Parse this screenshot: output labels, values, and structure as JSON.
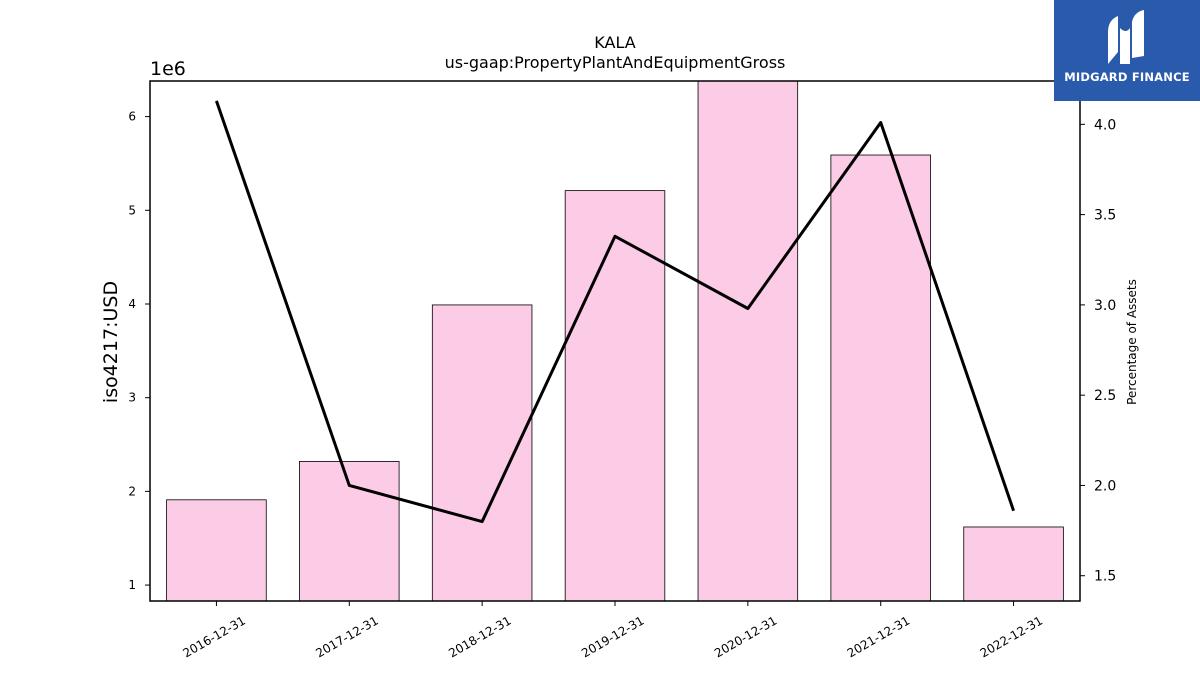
{
  "chart_data": {
    "type": "bar",
    "title": "KALA",
    "subtitle": "us-gaap:PropertyPlantAndEquipmentGross",
    "ylabel": "iso4217:USD",
    "y2label": "Percentage of Assets",
    "y_offset_text": "1e6",
    "categories": [
      "2016-12-31",
      "2017-12-31",
      "2018-12-31",
      "2019-12-31",
      "2020-12-31",
      "2021-12-31",
      "2022-12-31"
    ],
    "series": [
      {
        "type": "bar",
        "axis": "left",
        "values": [
          1910000,
          2320000,
          3990000,
          5210000,
          6400000,
          5590000,
          1620000
        ]
      },
      {
        "type": "line",
        "axis": "right",
        "values": [
          4.13,
          2.0,
          1.8,
          3.38,
          2.98,
          4.01,
          1.86
        ]
      }
    ],
    "ylim": [
      830000,
      6380000
    ],
    "y2lim": [
      1.36,
      4.24
    ],
    "yticks": [
      1,
      2,
      3,
      4,
      5,
      6
    ],
    "y2ticks": [
      "1.5",
      "2.0",
      "2.5",
      "3.0",
      "3.5",
      "4.0"
    ],
    "grid": false,
    "colors": {
      "bar_fill": "#fccce6",
      "bar_edge": "#000000",
      "line": "#000000"
    }
  },
  "logo": {
    "text": "MIDGARD FINANCE",
    "background": "#2a5aab",
    "icon": "midgard-logo-icon"
  }
}
